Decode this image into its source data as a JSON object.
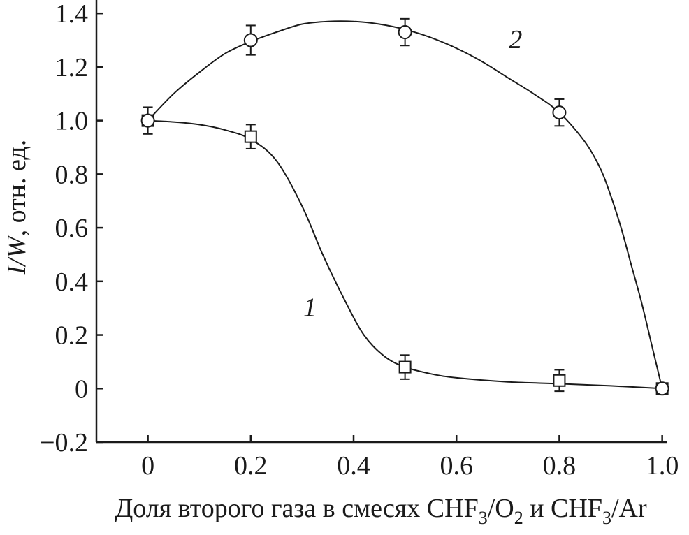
{
  "chart_data": {
    "type": "scatter",
    "x_ticks": [
      "0",
      "0.2",
      "0.4",
      "0.6",
      "0.8",
      "1.0"
    ],
    "y_ticks": [
      "−0.2",
      "0",
      "0.2",
      "0.4",
      "0.6",
      "0.8",
      "1.0",
      "1.2",
      "1.4"
    ],
    "xlim": [
      -0.1,
      1.01
    ],
    "ylim": [
      -0.2,
      1.45
    ],
    "xlabel": {
      "parts": [
        "Доля второго газа в смесях CHF",
        "3",
        "/O",
        "2",
        " и CHF",
        "3",
        "/Ar"
      ]
    },
    "ylabel": {
      "italic": "I/W",
      "normal": ", отн. ед."
    },
    "grid": false,
    "series": [
      {
        "name": "1",
        "marker": "square",
        "x": [
          0,
          0.2,
          0.5,
          0.8,
          1.0
        ],
        "y": [
          1.0,
          0.94,
          0.08,
          0.03,
          0.0
        ],
        "err": [
          0.05,
          0.045,
          0.045,
          0.04,
          0.0
        ],
        "label_at": [
          0.315,
          0.27
        ]
      },
      {
        "name": "2",
        "marker": "circle",
        "x": [
          0,
          0.2,
          0.5,
          0.8,
          1.0
        ],
        "y": [
          1.0,
          1.3,
          1.33,
          1.03,
          0.0
        ],
        "err": [
          0.0,
          0.055,
          0.05,
          0.05,
          0.0
        ],
        "label_at": [
          0.715,
          1.27
        ]
      }
    ],
    "curve_1": [
      [
        0,
        1.0
      ],
      [
        0.05,
        0.995
      ],
      [
        0.1,
        0.985
      ],
      [
        0.15,
        0.965
      ],
      [
        0.2,
        0.93
      ],
      [
        0.25,
        0.85
      ],
      [
        0.3,
        0.68
      ],
      [
        0.34,
        0.5
      ],
      [
        0.38,
        0.34
      ],
      [
        0.42,
        0.2
      ],
      [
        0.46,
        0.12
      ],
      [
        0.5,
        0.08
      ],
      [
        0.55,
        0.055
      ],
      [
        0.6,
        0.04
      ],
      [
        0.7,
        0.025
      ],
      [
        0.8,
        0.018
      ],
      [
        0.9,
        0.01
      ],
      [
        1.0,
        0.0
      ]
    ],
    "curve_2": [
      [
        0,
        1.0
      ],
      [
        0.05,
        1.1
      ],
      [
        0.1,
        1.18
      ],
      [
        0.15,
        1.25
      ],
      [
        0.2,
        1.295
      ],
      [
        0.25,
        1.33
      ],
      [
        0.3,
        1.36
      ],
      [
        0.35,
        1.37
      ],
      [
        0.4,
        1.37
      ],
      [
        0.45,
        1.36
      ],
      [
        0.5,
        1.34
      ],
      [
        0.55,
        1.31
      ],
      [
        0.6,
        1.27
      ],
      [
        0.65,
        1.22
      ],
      [
        0.7,
        1.16
      ],
      [
        0.75,
        1.1
      ],
      [
        0.8,
        1.03
      ],
      [
        0.85,
        0.92
      ],
      [
        0.88,
        0.82
      ],
      [
        0.9,
        0.72
      ],
      [
        0.92,
        0.6
      ],
      [
        0.94,
        0.46
      ],
      [
        0.96,
        0.32
      ],
      [
        0.98,
        0.16
      ],
      [
        1.0,
        0.0
      ]
    ]
  }
}
